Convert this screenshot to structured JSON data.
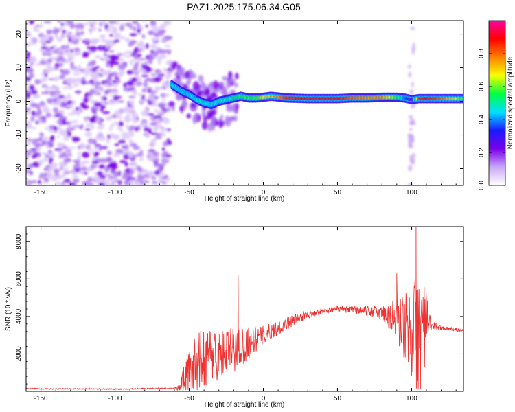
{
  "title": "PAZ1.2025.175.06.34.G05",
  "chart_data": [
    {
      "type": "heatmap",
      "xlabel": "Height of straight line (km)",
      "ylabel": "Frequency (Hz)",
      "xlim": [
        -160,
        135
      ],
      "ylim": [
        -25,
        24
      ],
      "xticks": [
        -150,
        -100,
        -50,
        0,
        50,
        100
      ],
      "yticks": [
        -20,
        -10,
        0,
        10,
        20
      ],
      "colorbar": {
        "label": "Normalized spectral amplitude",
        "range": [
          0,
          1
        ],
        "ticks": [
          0.0,
          0.2,
          0.4,
          0.6,
          0.8
        ],
        "colormap": [
          "#ffffff",
          "#c8a8f8",
          "#7a00e8",
          "#1a1aff",
          "#00e0ff",
          "#00ff40",
          "#f8ff00",
          "#ff8000",
          "#ff0000",
          "#ff00a0"
        ]
      },
      "noise_region_x": [
        -160,
        -63
      ],
      "ridge": {
        "x": [
          -62,
          -55,
          -50,
          -45,
          -40,
          -35,
          -30,
          -25,
          -20,
          -15,
          -10,
          -5,
          0,
          5,
          10,
          15,
          30,
          50,
          60,
          70,
          80,
          90,
          95,
          100,
          105,
          110,
          120,
          135
        ],
        "freq": [
          5,
          3,
          2,
          0.5,
          -0.5,
          -1,
          0,
          0.5,
          1,
          1.5,
          1,
          1,
          1.2,
          1.5,
          1.3,
          1,
          0.8,
          0.8,
          1,
          1,
          1.2,
          1.2,
          1,
          0.5,
          0.8,
          0.8,
          0.8,
          0.8
        ],
        "amplitude": [
          0.5,
          0.45,
          0.45,
          0.5,
          0.5,
          0.45,
          0.5,
          0.5,
          0.55,
          0.6,
          0.6,
          0.6,
          0.7,
          0.75,
          0.8,
          0.9,
          0.95,
          0.95,
          0.85,
          0.8,
          0.8,
          0.6,
          0.4,
          0.25,
          0.9,
          0.95,
          0.85,
          0.6
        ]
      }
    },
    {
      "type": "line",
      "xlabel": "Height of straight line (km)",
      "ylabel": "SNR (10 * v/v)",
      "xlim": [
        -160,
        135
      ],
      "ylim": [
        0,
        8800
      ],
      "xticks": [
        -150,
        -100,
        -50,
        0,
        50,
        100
      ],
      "yticks": [
        2000,
        4000,
        6000,
        8000
      ],
      "color": "#ee3333",
      "series": [
        {
          "x": [
            -160,
            -140,
            -120,
            -100,
            -80,
            -60,
            -56,
            -54,
            -50,
            -45,
            -40,
            -35,
            -30,
            -25,
            -20,
            -15,
            -10,
            -5,
            0,
            10,
            20,
            30,
            40,
            50,
            60,
            70,
            80,
            85,
            90,
            95,
            100,
            105,
            108,
            110,
            113,
            120,
            130,
            135
          ],
          "y": [
            150,
            130,
            140,
            120,
            150,
            160,
            200,
            700,
            1000,
            1500,
            1800,
            2000,
            2000,
            2100,
            2200,
            2400,
            2600,
            2800,
            3000,
            3400,
            3800,
            4100,
            4300,
            4400,
            4350,
            4300,
            4200,
            4000,
            3800,
            3500,
            3200,
            3000,
            3600,
            3800,
            3500,
            3400,
            3300,
            3250
          ],
          "spread": [
            30,
            30,
            30,
            30,
            30,
            30,
            200,
            800,
            1200,
            1600,
            1600,
            1600,
            1400,
            1300,
            1300,
            1100,
            900,
            700,
            500,
            400,
            300,
            200,
            150,
            150,
            200,
            250,
            400,
            800,
            1300,
            1800,
            2500,
            3500,
            3000,
            1500,
            300,
            100,
            100,
            100
          ],
          "spikes": [
            {
              "x": -17,
              "y": 6200
            },
            {
              "x": 90,
              "y": 6300
            },
            {
              "x": 103,
              "y": 8800
            },
            {
              "x": 104,
              "y": 550
            }
          ]
        }
      ]
    }
  ]
}
